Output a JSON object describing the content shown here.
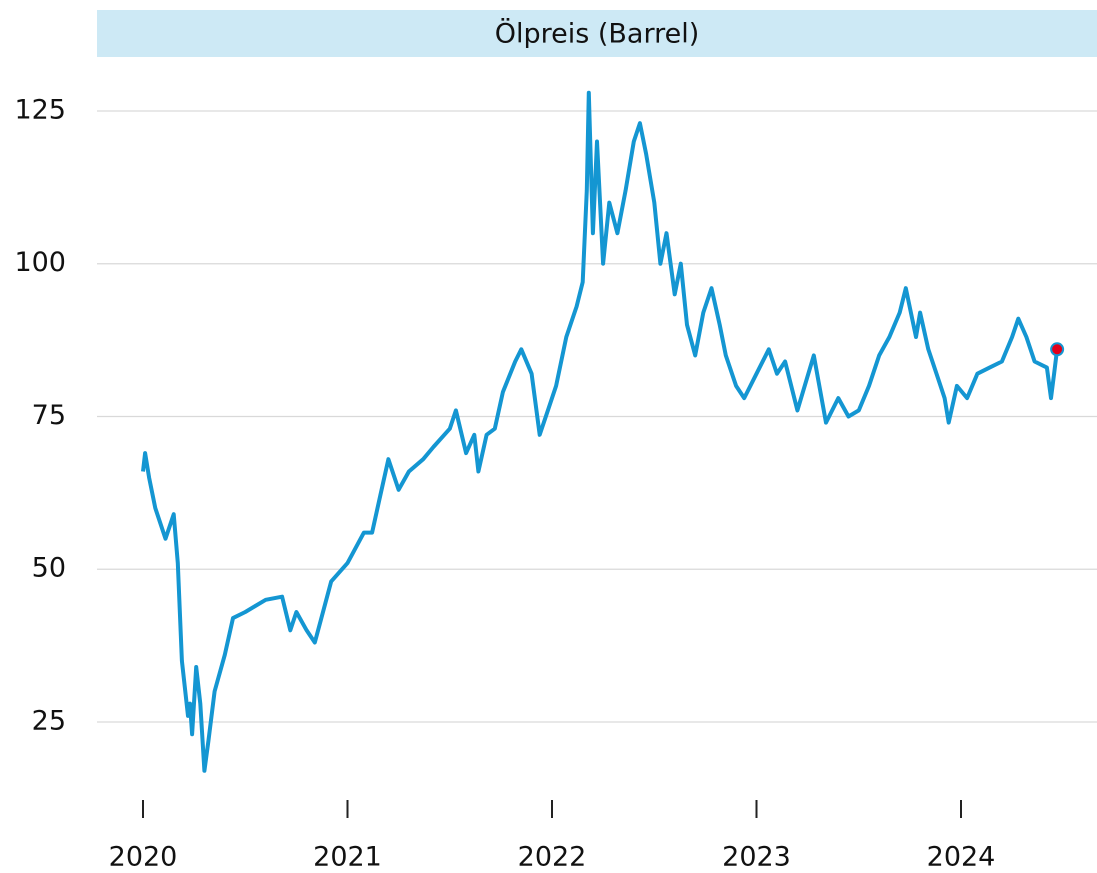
{
  "chart_data": {
    "type": "line",
    "title": "Ölpreis (Barrel)",
    "x": [
      2020.0,
      2020.01,
      2020.03,
      2020.06,
      2020.11,
      2020.15,
      2020.17,
      2020.19,
      2020.22,
      2020.23,
      2020.24,
      2020.26,
      2020.28,
      2020.3,
      2020.32,
      2020.35,
      2020.4,
      2020.44,
      2020.5,
      2020.55,
      2020.6,
      2020.68,
      2020.72,
      2020.75,
      2020.8,
      2020.84,
      2020.88,
      2020.92,
      2021.0,
      2021.08,
      2021.12,
      2021.16,
      2021.2,
      2021.25,
      2021.3,
      2021.37,
      2021.42,
      2021.5,
      2021.53,
      2021.58,
      2021.62,
      2021.64,
      2021.68,
      2021.72,
      2021.76,
      2021.82,
      2021.85,
      2021.9,
      2021.94,
      2021.98,
      2022.02,
      2022.07,
      2022.12,
      2022.15,
      2022.17,
      2022.18,
      2022.2,
      2022.22,
      2022.25,
      2022.28,
      2022.32,
      2022.36,
      2022.4,
      2022.43,
      2022.46,
      2022.5,
      2022.53,
      2022.56,
      2022.6,
      2022.63,
      2022.66,
      2022.7,
      2022.74,
      2022.78,
      2022.82,
      2022.85,
      2022.9,
      2022.94,
      2023.0,
      2023.06,
      2023.1,
      2023.14,
      2023.2,
      2023.28,
      2023.34,
      2023.4,
      2023.45,
      2023.5,
      2023.55,
      2023.6,
      2023.65,
      2023.7,
      2023.73,
      2023.78,
      2023.8,
      2023.84,
      2023.88,
      2023.92,
      2023.94,
      2023.98,
      2024.03,
      2024.08,
      2024.14,
      2024.2,
      2024.25,
      2024.28,
      2024.32,
      2024.36,
      2024.42,
      2024.44,
      2024.455,
      2024.47
    ],
    "series": [
      {
        "color": "#1496d2",
        "values": [
          66,
          69,
          65,
          60,
          55,
          59,
          51,
          35,
          26,
          28,
          23,
          34,
          28,
          17,
          22,
          30,
          36,
          42,
          43,
          44,
          45,
          45.5,
          40,
          43,
          40,
          38,
          43,
          48,
          51,
          56,
          56,
          62,
          68,
          63,
          66,
          68,
          70,
          73,
          76,
          69,
          72,
          66,
          72,
          73,
          79,
          84,
          86,
          82,
          72,
          76,
          80,
          88,
          93,
          97,
          112,
          128,
          105,
          120,
          100,
          110,
          105,
          112,
          120,
          123,
          118,
          110,
          100,
          105,
          95,
          100,
          90,
          85,
          92,
          96,
          90,
          85,
          80,
          78,
          82,
          86,
          82,
          84,
          76,
          85,
          74,
          78,
          75,
          76,
          80,
          85,
          88,
          92,
          96,
          88,
          92,
          86,
          82,
          78,
          74,
          80,
          78,
          82,
          83,
          84,
          88,
          91,
          88,
          84,
          83,
          78,
          82,
          86
        ]
      }
    ],
    "end_marker_color": "#e2001a",
    "xlim": [
      2019.775,
      2024.665
    ],
    "xticks": [
      2020,
      2021,
      2022,
      2023,
      2024
    ],
    "ylim": [
      11,
      134
    ],
    "yticks": [
      25,
      50,
      75,
      100,
      125
    ],
    "grid": true
  }
}
